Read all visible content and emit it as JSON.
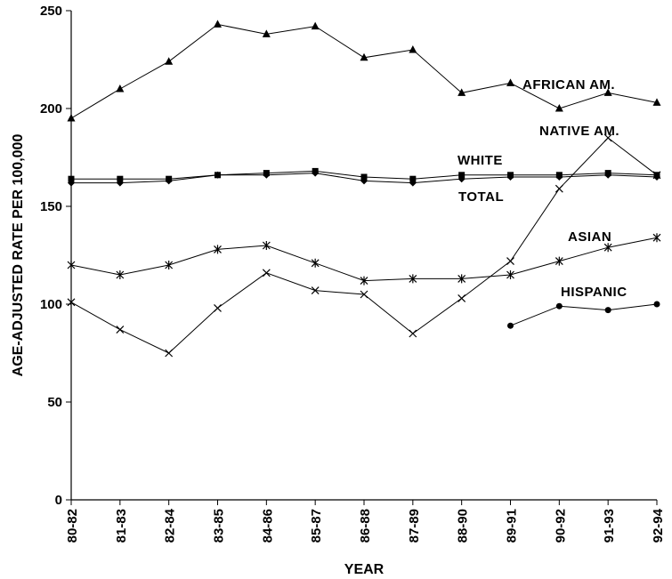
{
  "chart_data": {
    "type": "line",
    "title": "",
    "xlabel": "YEAR",
    "ylabel": "AGE-ADJUSTED RATE PER 100,000",
    "ylim": [
      0,
      250
    ],
    "yticks": [
      0,
      50,
      100,
      150,
      200,
      250
    ],
    "grid": false,
    "categories": [
      "80-82",
      "81-83",
      "82-84",
      "83-85",
      "84-86",
      "85-87",
      "86-88",
      "87-89",
      "88-90",
      "89-91",
      "90-92",
      "91-93",
      "92-94"
    ],
    "series": [
      {
        "name": "AFRICAN AM.",
        "marker": "triangle",
        "values": [
          195,
          210,
          224,
          243,
          238,
          242,
          226,
          230,
          208,
          213,
          200,
          208,
          203
        ]
      },
      {
        "name": "NATIVE AM.",
        "marker": "x",
        "values": [
          101,
          87,
          75,
          98,
          116,
          107,
          105,
          85,
          103,
          122,
          159,
          185,
          166
        ]
      },
      {
        "name": "WHITE",
        "marker": "square",
        "values": [
          164,
          164,
          164,
          166,
          167,
          168,
          165,
          164,
          166,
          166,
          166,
          167,
          166
        ]
      },
      {
        "name": "TOTAL",
        "marker": "diamond",
        "values": [
          162,
          162,
          163,
          166,
          166,
          167,
          163,
          162,
          164,
          165,
          165,
          166,
          165
        ]
      },
      {
        "name": "ASIAN",
        "marker": "asterisk",
        "values": [
          120,
          115,
          120,
          128,
          130,
          121,
          112,
          113,
          113,
          115,
          122,
          129,
          134
        ]
      },
      {
        "name": "HISPANIC",
        "marker": "circle",
        "values": [
          null,
          null,
          null,
          null,
          null,
          null,
          null,
          null,
          null,
          89,
          99,
          97,
          100
        ]
      }
    ]
  }
}
